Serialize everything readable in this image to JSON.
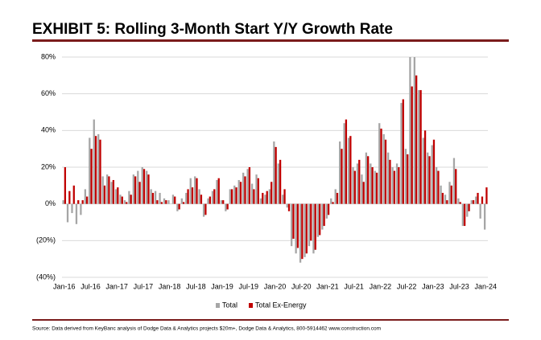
{
  "chart_data": {
    "type": "bar",
    "title": "EXHIBIT 5: Rolling 3-Month Start Y/Y Growth Rate",
    "source": "Source: Data derived from KeyBanc analysis of Dodge Data & Analytics projects $20m+, Dodge Data & Analytics, 800-5914462 www.construction.com",
    "categories": [
      "Jan-16",
      null,
      null,
      null,
      null,
      null,
      "Jul-16",
      null,
      null,
      null,
      null,
      null,
      "Jan-17",
      null,
      null,
      null,
      null,
      null,
      "Jul-17",
      null,
      null,
      null,
      null,
      null,
      "Jan-18",
      null,
      null,
      null,
      null,
      null,
      "Jul-18",
      null,
      null,
      null,
      null,
      null,
      "Jan-19",
      null,
      null,
      null,
      null,
      null,
      "Jul-19",
      null,
      null,
      null,
      null,
      null,
      "Jan-20",
      null,
      null,
      null,
      null,
      null,
      "Jul-20",
      null,
      null,
      null,
      null,
      null,
      "Jan-21",
      null,
      null,
      null,
      null,
      null,
      "Jul-21",
      null,
      null,
      null,
      null,
      null,
      "Jan-22",
      null,
      null,
      null,
      null,
      null,
      "Jul-22",
      null,
      null,
      null,
      null,
      null,
      "Jan-23",
      null,
      null,
      null,
      null,
      null,
      "Jul-23",
      null,
      null,
      null,
      null,
      null,
      "Jan-24"
    ],
    "series": [
      {
        "name": "Total",
        "color": "#a6a6a6",
        "values": [
          2,
          -10,
          -5,
          -11,
          -6,
          8,
          36,
          46,
          38,
          15,
          16,
          12,
          8,
          5,
          2,
          7,
          16,
          18,
          20,
          18,
          8,
          7,
          6,
          3,
          2,
          5,
          -4,
          3,
          6,
          14,
          15,
          8,
          -7,
          3,
          7,
          13,
          2,
          -4,
          8,
          10,
          13,
          17,
          19,
          11,
          16,
          3,
          5,
          8,
          34,
          22,
          5,
          -2,
          -23,
          -27,
          -32,
          -29,
          -23,
          -27,
          -18,
          -14,
          -8,
          3,
          8,
          34,
          44,
          36,
          20,
          22,
          16,
          28,
          22,
          18,
          44,
          38,
          28,
          20,
          22,
          55,
          30,
          80,
          80,
          62,
          36,
          28,
          32,
          20,
          10,
          5,
          12,
          25,
          3,
          -12,
          -7,
          2,
          4,
          -8,
          -14
        ]
      },
      {
        "name": "Total Ex-Energy",
        "color": "#c00000",
        "values": [
          20,
          7,
          10,
          2,
          2,
          4,
          30,
          37,
          35,
          10,
          15,
          13,
          9,
          4,
          1,
          5,
          15,
          12,
          19,
          16,
          6,
          2,
          1,
          2,
          0,
          4,
          -3,
          1,
          8,
          9,
          14,
          5,
          -6,
          4,
          8,
          14,
          2,
          -3,
          8,
          9,
          12,
          15,
          20,
          8,
          14,
          6,
          7,
          12,
          31,
          24,
          8,
          -4,
          -19,
          -24,
          -30,
          -27,
          -20,
          -25,
          -17,
          -12,
          -6,
          1,
          6,
          30,
          46,
          37,
          18,
          24,
          12,
          26,
          20,
          17,
          41,
          35,
          24,
          18,
          20,
          57,
          27,
          64,
          70,
          62,
          40,
          26,
          35,
          18,
          6,
          2,
          10,
          19,
          1,
          -12,
          -4,
          2,
          6,
          4,
          9
        ]
      }
    ],
    "ylim": [
      -40,
      80
    ],
    "yticks": [
      {
        "value": -40,
        "label": "(40%)"
      },
      {
        "value": -20,
        "label": "(20%)"
      },
      {
        "value": 0,
        "label": "0%"
      },
      {
        "value": 20,
        "label": "20%"
      },
      {
        "value": 40,
        "label": "40%"
      },
      {
        "value": 60,
        "label": "60%"
      },
      {
        "value": 80,
        "label": "80%"
      }
    ],
    "grid": true,
    "legend": "bottom"
  }
}
